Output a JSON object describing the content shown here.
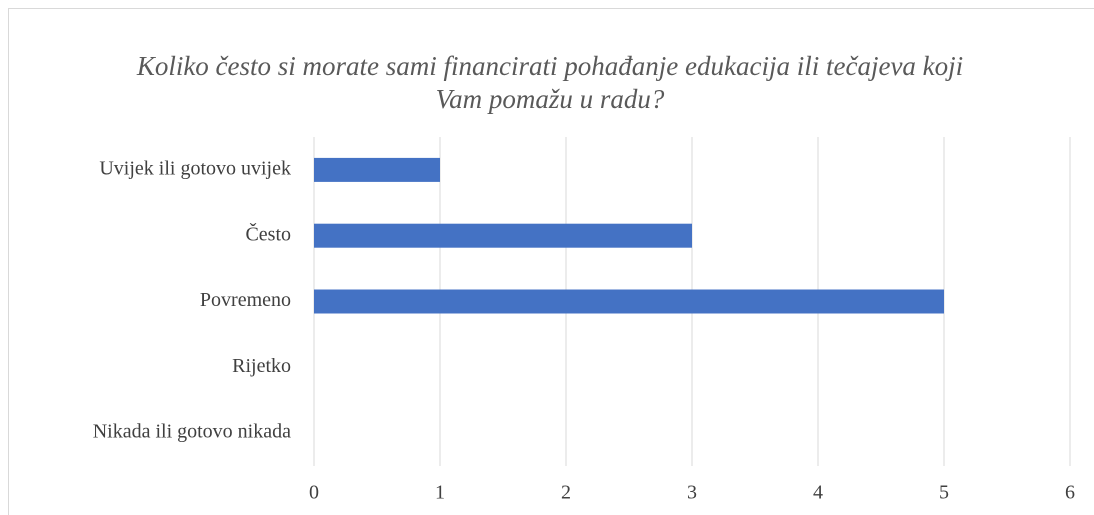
{
  "chart_data": {
    "type": "hbar",
    "title": "Koliko često si morate sami financirati pohađanje edukacija ili tečajeva koji Vam pomažu u radu?",
    "categories": [
      "Uvijek ili gotovo uvijek",
      "Često",
      "Povremeno",
      "Rijetko",
      "Nikada ili gotovo nikada"
    ],
    "values": [
      1,
      3,
      5,
      0,
      0
    ],
    "color": "#4472c4",
    "xlim": [
      0,
      6
    ],
    "xticks": [
      0,
      1,
      2,
      3,
      4,
      5,
      6
    ],
    "grid": true
  }
}
